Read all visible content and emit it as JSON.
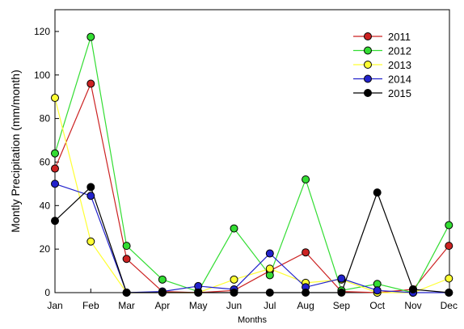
{
  "chart_data": {
    "type": "line",
    "title": "",
    "xlabel": "Months",
    "ylabel": "Montly Precipitation   (mm/month)",
    "categories": [
      "Jan",
      "Feb",
      "Mar",
      "Apr",
      "May",
      "Jun",
      "Jul",
      "Aug",
      "Sep",
      "Oct",
      "Nov",
      "Dec"
    ],
    "ylim": [
      0,
      130
    ],
    "yticks": [
      0,
      20,
      40,
      60,
      80,
      100,
      120
    ],
    "grid": false,
    "legend_position": "top-right",
    "series": [
      {
        "name": "2011",
        "color": "#cc2222",
        "values": [
          57,
          96,
          15.5,
          0.5,
          0,
          1,
          10,
          18.5,
          0.5,
          0,
          1.5,
          21.5
        ]
      },
      {
        "name": "2012",
        "color": "#33dd33",
        "values": [
          64,
          117.5,
          21.5,
          6,
          0.5,
          29.5,
          8,
          52,
          1,
          4,
          0,
          31
        ]
      },
      {
        "name": "2013",
        "color": "#ffff33",
        "values": [
          89.5,
          23.5,
          0,
          0,
          0,
          6,
          11,
          4.5,
          6,
          0,
          0,
          6.5
        ]
      },
      {
        "name": "2014",
        "color": "#2222cc",
        "values": [
          50,
          44.5,
          0,
          0.5,
          3,
          1.5,
          18,
          2.5,
          6.5,
          1,
          0,
          0
        ]
      },
      {
        "name": "2015",
        "color": "#000000",
        "values": [
          33,
          48.5,
          0,
          0,
          0,
          0,
          0,
          0,
          0,
          46,
          1.5,
          0
        ]
      }
    ]
  }
}
